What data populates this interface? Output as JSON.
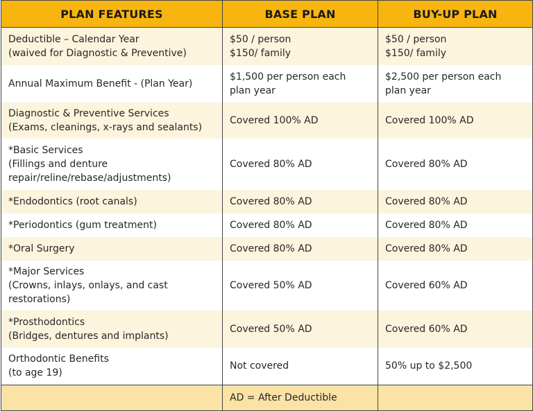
{
  "headers": [
    "PLAN FEATURES",
    "BASE PLAN",
    "BUY-UP PLAN"
  ],
  "rows": [
    {
      "feature": "Deductible – Calendar Year\n(waived for Diagnostic & Preventive)",
      "base": "$50 / person\n$150/ family",
      "buyup": "$50 / person\n$150/ family"
    },
    {
      "feature": "Annual Maximum Benefit - (Plan Year)",
      "base": "$1,500 per person each\nplan year",
      "buyup": "$2,500 per person each\nplan year"
    },
    {
      "feature": "Diagnostic & Preventive Services\n(Exams, cleanings, x-rays and sealants)",
      "base": "Covered 100% AD",
      "buyup": "Covered 100% AD"
    },
    {
      "feature": "*Basic Services\n(Fillings and denture\nrepair/reline/rebase/adjustments)",
      "base": "Covered 80% AD",
      "buyup": "Covered 80% AD"
    },
    {
      "feature": "*Endodontics (root canals)",
      "base": "Covered 80% AD",
      "buyup": "Covered 80% AD"
    },
    {
      "feature": "*Periodontics (gum treatment)",
      "base": "Covered 80% AD",
      "buyup": "Covered 80% AD"
    },
    {
      "feature": "*Oral Surgery",
      "base": "Covered 80% AD",
      "buyup": "Covered 80% AD"
    },
    {
      "feature": "*Major Services\n(Crowns, inlays, onlays, and cast\nrestorations)",
      "base": "Covered 50% AD",
      "buyup": "Covered 60% AD"
    },
    {
      "feature": "*Prosthodontics\n(Bridges, dentures and implants)",
      "base": "Covered 50% AD",
      "buyup": "Covered 60% AD"
    },
    {
      "feature": "Orthodontic Benefits\n(to age 19)",
      "base": "Not covered",
      "buyup": "50% up to $2,500"
    }
  ],
  "footer": {
    "note": "AD = After Deductible"
  }
}
